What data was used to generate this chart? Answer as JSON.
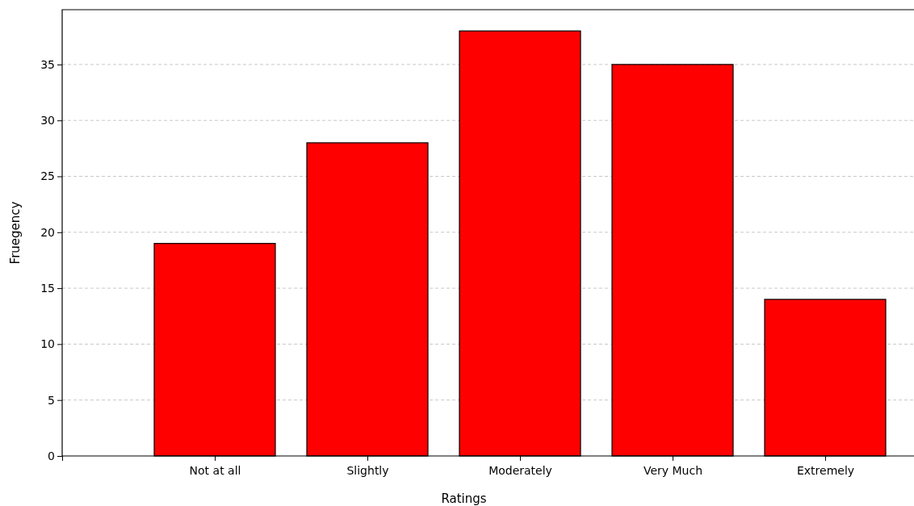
{
  "chart_data": {
    "type": "bar",
    "xlabel": "Ratings",
    "ylabel": "Fruegency",
    "categories": [
      null,
      "Not at all",
      "Slightly",
      "Moderately",
      "Very Much",
      "Extremely"
    ],
    "values": [
      null,
      19,
      28,
      38,
      35,
      14
    ],
    "color": "#ff0000",
    "ylim": [
      0,
      39.9
    ],
    "yticks": [
      0,
      5,
      10,
      15,
      20,
      25,
      30,
      35
    ],
    "grid": "y"
  }
}
